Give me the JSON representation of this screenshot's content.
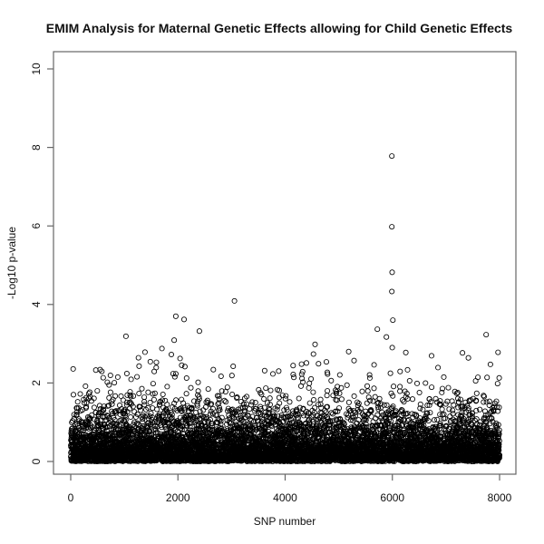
{
  "chart_data": {
    "type": "scatter",
    "title": "EMIM Analysis for Maternal Genetic Effects allowing for Child Genetic Effects",
    "xlabel": "SNP number",
    "ylabel": "-Log10 p-value",
    "xlim": [
      0,
      8000
    ],
    "ylim": [
      0,
      10
    ],
    "x_ticks": [
      0,
      2000,
      4000,
      6000,
      8000
    ],
    "x_tick_labels": [
      "0",
      "2000",
      "4000",
      "6000",
      "8000"
    ],
    "y_ticks": [
      0,
      2,
      4,
      6,
      8,
      10
    ],
    "y_tick_labels": [
      "0",
      "2",
      "4",
      "6",
      "8",
      "10"
    ],
    "grid": false,
    "legend": null,
    "marker": "open-circle",
    "marker_color": "#000000",
    "frame_color": "#666666",
    "text_color": "#111111",
    "n_points": 8000,
    "seed": 20,
    "background_distribution": "y = -log10(p) with p ~ Uniform(0,1): dense near-solid band from 0 to ~1, thinning speckle up to ~3",
    "background_max": 3.05,
    "outliers": [
      [
        5990,
        7.78
      ],
      [
        5990,
        5.98
      ],
      [
        5995,
        4.82
      ],
      [
        5990,
        4.33
      ],
      [
        3055,
        4.09
      ],
      [
        1960,
        3.7
      ],
      [
        2115,
        3.62
      ],
      [
        6010,
        3.6
      ],
      [
        5720,
        3.37
      ],
      [
        2400,
        3.32
      ],
      [
        7750,
        3.23
      ],
      [
        1030,
        3.19
      ],
      [
        5890,
        3.17
      ],
      [
        1930,
        3.09
      ]
    ]
  }
}
